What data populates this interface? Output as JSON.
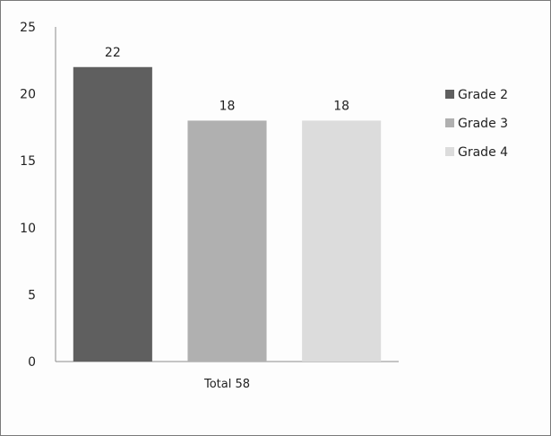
{
  "chart_data": {
    "type": "bar",
    "title": "",
    "xlabel": "",
    "ylabel": "",
    "categories": [
      "Total 58"
    ],
    "series": [
      {
        "name": "Grade 2",
        "values": [
          22
        ],
        "color": "#5f5f5f"
      },
      {
        "name": "Grade 3",
        "values": [
          18
        ],
        "color": "#b0b0b0"
      },
      {
        "name": "Grade 4",
        "values": [
          18
        ],
        "color": "#dcdcdc"
      }
    ],
    "data_labels": [
      "22",
      "18",
      "18"
    ],
    "y_ticks": [
      "0",
      "5",
      "10",
      "15",
      "20",
      "25"
    ],
    "ylim": [
      0,
      25
    ],
    "grid": false,
    "legend": "right"
  }
}
